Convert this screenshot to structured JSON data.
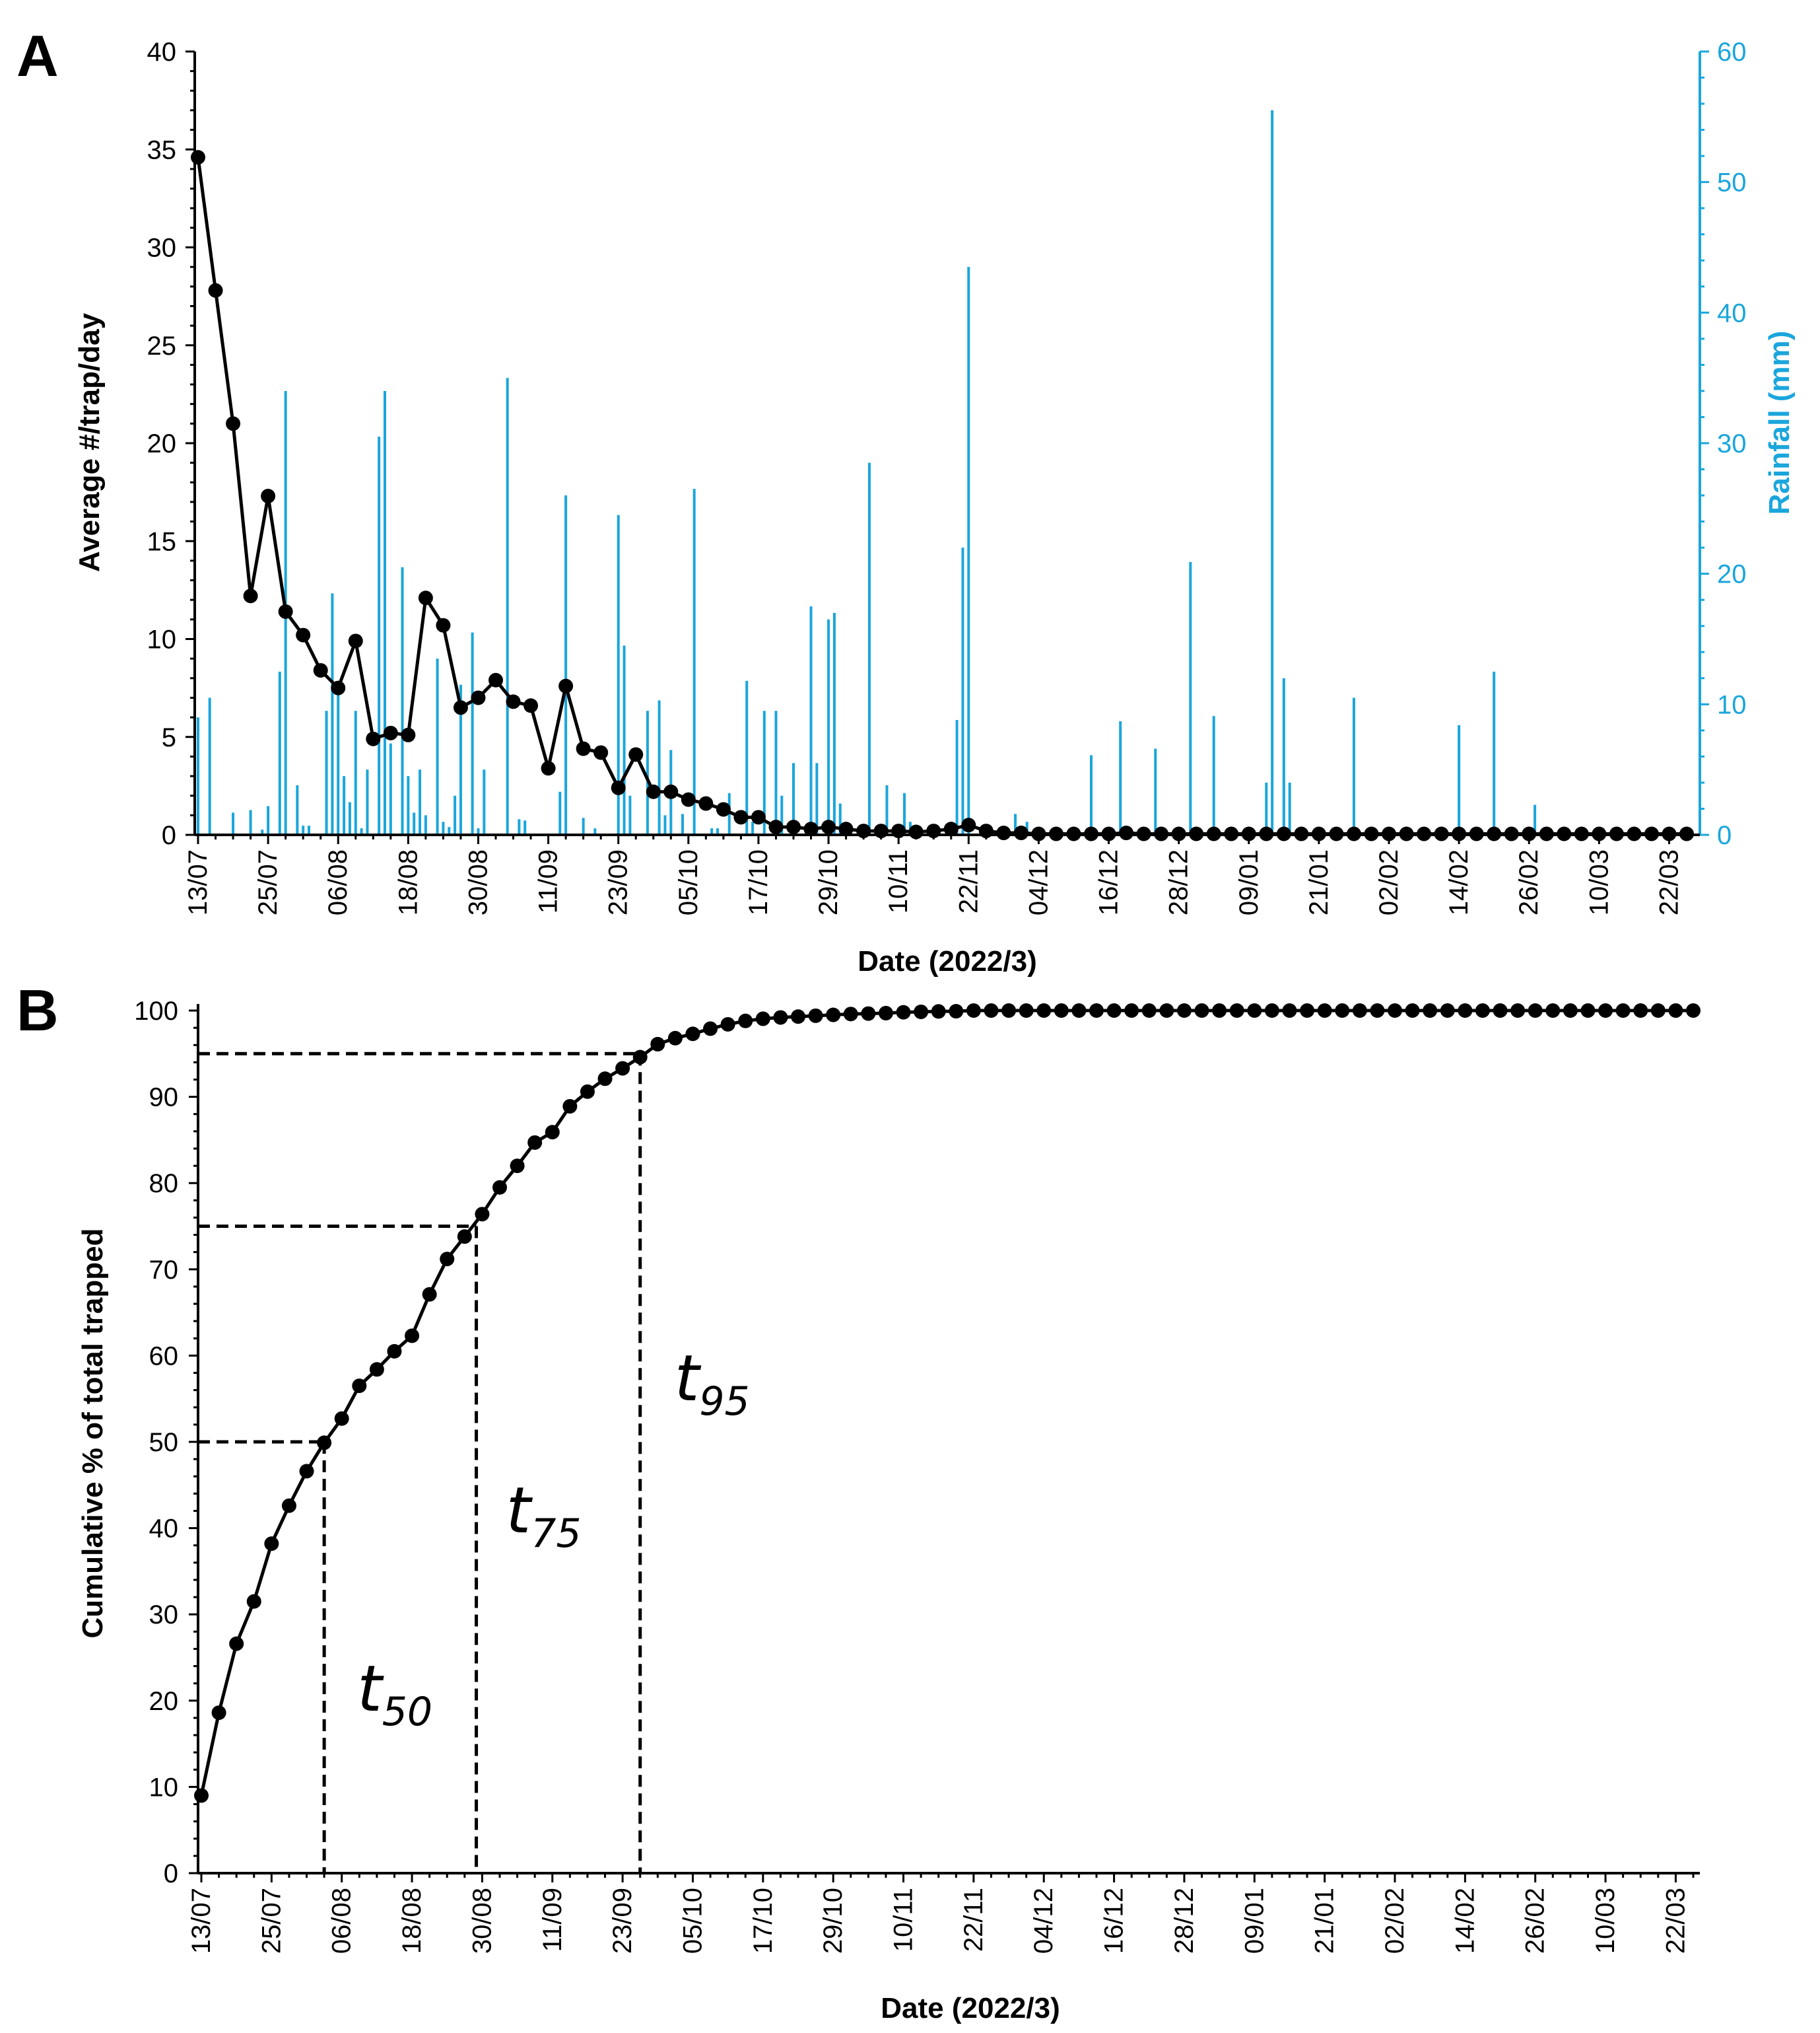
{
  "chart_data": [
    {
      "panel": "A",
      "type": "line+bar",
      "xlabel": "Date (2022/3)",
      "ylabel": "Average #/trap/day",
      "y2label": "Rainfall (mm)",
      "ylim": [
        0,
        40
      ],
      "y2lim": [
        0,
        60
      ],
      "xlim": [
        0,
        255
      ],
      "yticks": [
        0,
        5,
        10,
        15,
        20,
        25,
        30,
        35,
        40
      ],
      "y2ticks": [
        0,
        10,
        20,
        30,
        40,
        50,
        60
      ],
      "x_tick_days": [
        0,
        12,
        24,
        36,
        48,
        60,
        72,
        84,
        96,
        108,
        120,
        132,
        144,
        156,
        168,
        180,
        192,
        204,
        216,
        228,
        240,
        252
      ],
      "x_tick_labels": [
        "13/07",
        "25/07",
        "06/08",
        "18/08",
        "30/08",
        "11/09",
        "23/09",
        "05/10",
        "17/10",
        "29/10",
        "10/11",
        "22/11",
        "04/12",
        "16/12",
        "28/12",
        "09/01",
        "21/01",
        "02/02",
        "14/02",
        "26/02",
        "10/03",
        "22/03"
      ],
      "series": [
        {
          "name": "Average #/trap/day",
          "color": "#000000",
          "x": [
            0,
            3,
            6,
            9,
            12,
            15,
            18,
            21,
            24,
            27,
            30,
            33,
            36,
            39,
            42,
            45,
            48,
            51,
            54,
            57,
            60,
            63,
            66,
            69,
            72,
            75,
            78,
            81,
            84,
            87,
            90,
            93,
            96,
            99,
            102,
            105,
            108,
            111,
            114,
            117,
            120,
            123,
            126,
            129,
            132,
            135,
            138,
            141,
            144,
            147,
            150,
            153,
            156,
            159,
            162,
            165,
            168,
            171,
            174,
            177,
            180,
            183,
            186,
            189,
            192,
            195,
            198,
            201,
            204,
            207,
            210,
            213,
            216,
            219,
            222,
            225,
            228,
            231,
            234,
            237,
            240,
            243,
            246,
            249,
            252,
            255
          ],
          "y": [
            34.6,
            27.8,
            21.0,
            12.2,
            17.3,
            11.4,
            10.2,
            8.4,
            7.5,
            9.9,
            4.9,
            5.2,
            5.1,
            12.1,
            10.7,
            6.5,
            7.0,
            7.9,
            6.8,
            6.6,
            3.4,
            7.6,
            4.4,
            4.2,
            2.4,
            4.1,
            2.2,
            2.2,
            1.8,
            1.6,
            1.3,
            0.9,
            0.9,
            0.4,
            0.4,
            0.3,
            0.4,
            0.3,
            0.2,
            0.2,
            0.2,
            0.15,
            0.2,
            0.3,
            0.5,
            0.2,
            0.1,
            0.1,
            0.05,
            0.05,
            0.05,
            0.05,
            0.05,
            0.1,
            0.05,
            0.05,
            0.05,
            0.05,
            0.05,
            0.05,
            0.05,
            0.05,
            0.05,
            0.05,
            0.05,
            0.05,
            0.05,
            0.05,
            0.05,
            0.05,
            0.05,
            0.05,
            0.05,
            0.05,
            0.05,
            0.05,
            0.05,
            0.05,
            0.05,
            0.05,
            0.05,
            0.05,
            0.05,
            0.05,
            0.05,
            0.05
          ]
        },
        {
          "name": "Rainfall (mm)",
          "type": "bar",
          "axis": "right",
          "color": "#1aa6dc",
          "x": [
            0,
            2,
            6,
            9,
            11,
            12,
            14,
            15,
            17,
            18,
            19,
            22,
            23,
            24,
            25,
            26,
            27,
            28,
            29,
            31,
            32,
            33,
            35,
            36,
            37,
            38,
            39,
            41,
            42,
            43,
            44,
            45,
            47,
            48,
            49,
            53,
            55,
            56,
            62,
            63,
            66,
            68,
            72,
            73,
            74,
            77,
            79,
            80,
            81,
            83,
            85,
            88,
            89,
            91,
            94,
            95,
            97,
            99,
            100,
            102,
            105,
            106,
            108,
            109,
            110,
            115,
            118,
            121,
            122,
            130,
            131,
            132,
            140,
            142,
            153,
            158,
            164,
            165,
            170,
            174,
            183,
            184,
            186,
            187,
            198,
            216,
            222,
            229
          ],
          "y": [
            9,
            10.5,
            1.7,
            1.9,
            0.4,
            2.2,
            12.5,
            34,
            3.8,
            0.7,
            0.7,
            9.5,
            18.5,
            11,
            4.5,
            2.5,
            9.5,
            0.5,
            5,
            30.5,
            34,
            7,
            20.5,
            4.5,
            1.7,
            5,
            1.5,
            13.5,
            1,
            0.6,
            3,
            11.5,
            15.5,
            0.5,
            5,
            35,
            1.2,
            1.1,
            3.3,
            26,
            1.3,
            0.5,
            24.5,
            14.5,
            3,
            9.5,
            10.3,
            1.5,
            6.5,
            1.6,
            26.5,
            0.5,
            0.5,
            3.2,
            11.8,
            1,
            9.5,
            9.5,
            3,
            5.5,
            17.5,
            5.5,
            16.5,
            17,
            2.4,
            28.5,
            3.8,
            3.2,
            1,
            8.8,
            22,
            43.5,
            1.6,
            1,
            6.1,
            8.7,
            6.6,
            0.6,
            20.9,
            9.1,
            4,
            55.5,
            12,
            4,
            10.5,
            8.4,
            12.5,
            2.3
          ]
        }
      ]
    },
    {
      "panel": "B",
      "type": "line",
      "xlabel": "Date (2022/3)",
      "ylabel": "Cumulative % of total trapped",
      "ylim": [
        0,
        100
      ],
      "xlim": [
        0,
        255
      ],
      "yticks": [
        0,
        10,
        20,
        30,
        40,
        50,
        60,
        70,
        80,
        90,
        100
      ],
      "x_tick_days": [
        0,
        12,
        24,
        36,
        48,
        60,
        72,
        84,
        96,
        108,
        120,
        132,
        144,
        156,
        168,
        180,
        192,
        204,
        216,
        228,
        240,
        252
      ],
      "x_tick_labels": [
        "13/07",
        "25/07",
        "06/08",
        "18/08",
        "30/08",
        "11/09",
        "23/09",
        "05/10",
        "17/10",
        "29/10",
        "10/11",
        "22/11",
        "04/12",
        "16/12",
        "28/12",
        "09/01",
        "21/01",
        "02/02",
        "14/02",
        "26/02",
        "10/03",
        "22/03"
      ],
      "series": [
        {
          "name": "Cumulative % of total trapped",
          "color": "#000000",
          "x": [
            0,
            3,
            6,
            9,
            12,
            15,
            18,
            21,
            24,
            27,
            30,
            33,
            36,
            39,
            42,
            45,
            48,
            51,
            54,
            57,
            60,
            63,
            66,
            69,
            72,
            75,
            78,
            81,
            84,
            87,
            90,
            93,
            96,
            99,
            102,
            105,
            108,
            111,
            114,
            117,
            120,
            123,
            126,
            129,
            132,
            135,
            138,
            141,
            144,
            147,
            150,
            153,
            156,
            159,
            162,
            165,
            168,
            171,
            174,
            177,
            180,
            183,
            186,
            189,
            192,
            195,
            198,
            201,
            204,
            207,
            210,
            213,
            216,
            219,
            222,
            225,
            228,
            231,
            234,
            237,
            240,
            243,
            246,
            249,
            252,
            255
          ],
          "y": [
            9,
            18.6,
            26.6,
            31.5,
            38.2,
            42.6,
            46.6,
            49.9,
            52.7,
            56.5,
            58.4,
            60.5,
            62.3,
            67.1,
            71.2,
            73.8,
            76.4,
            79.5,
            82,
            84.7,
            85.9,
            88.9,
            90.6,
            92.1,
            93.3,
            94.6,
            96.1,
            96.8,
            97.3,
            97.9,
            98.4,
            98.8,
            99.05,
            99.2,
            99.3,
            99.4,
            99.5,
            99.6,
            99.65,
            99.7,
            99.8,
            99.85,
            99.9,
            99.92,
            100,
            100,
            100,
            100,
            100,
            100,
            100,
            100,
            100,
            100,
            100,
            100,
            100,
            100,
            100,
            100,
            100,
            100,
            100,
            100,
            100,
            100,
            100,
            100,
            100,
            100,
            100,
            100,
            100,
            100,
            100,
            100,
            100,
            100,
            100,
            100,
            100,
            100,
            100,
            100,
            100,
            100
          ]
        }
      ],
      "annotations": [
        {
          "label": "t",
          "subscript": "50",
          "percent": 50,
          "day": 21
        },
        {
          "label": "t",
          "subscript": "75",
          "percent": 75,
          "day": 47
        },
        {
          "label": "t",
          "subscript": "95",
          "percent": 95,
          "day": 75
        }
      ]
    }
  ],
  "panel_labels": [
    "A",
    "B"
  ]
}
